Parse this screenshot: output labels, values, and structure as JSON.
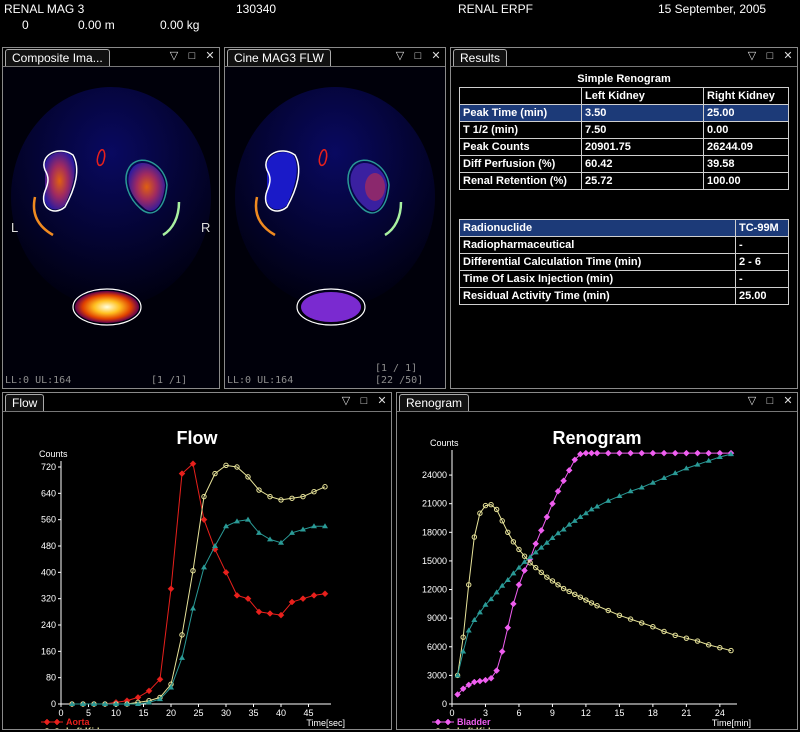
{
  "top": {
    "study": "RENAL MAG 3",
    "id": "130340",
    "title": "RENAL ERPF",
    "date": "15  September, 2005",
    "zero": "0",
    "height": "0.00 m",
    "weight": "0.00 kg"
  },
  "panels": {
    "composite": {
      "title": "Composite Ima...",
      "footer_left": "LL:0 UL:164",
      "footer_right": "[1 /1]",
      "label_left": "L",
      "label_right": "R"
    },
    "cine": {
      "title": "Cine MAG3 FLW",
      "footer_left": "LL:0 UL:164",
      "footer_frame": "[1 / 1]",
      "footer_right": "[22 /50]"
    },
    "results": {
      "title": "Results"
    },
    "flow": {
      "title": "Flow"
    },
    "renogram": {
      "title": "Renogram"
    }
  },
  "results": {
    "heading": "Simple Renogram",
    "columns": [
      "",
      "Left Kidney",
      "Right Kidney"
    ],
    "rows": [
      [
        "Peak Time (min)",
        "3.50",
        "25.00"
      ],
      [
        "T 1/2  (min)",
        "7.50",
        "0.00"
      ],
      [
        "Peak Counts",
        "20901.75",
        "26244.09"
      ],
      [
        "Diff Perfusion (%)",
        "60.42",
        "39.58"
      ],
      [
        "Renal Retention (%)",
        "25.72",
        "100.00"
      ]
    ],
    "info": [
      [
        "Radionuclide",
        "TC-99M"
      ],
      [
        "Radiopharmaceutical",
        "-"
      ],
      [
        "Differential Calculation Time (min)",
        "2 - 6"
      ],
      [
        "Time Of Lasix Injection (min)",
        "-"
      ],
      [
        "Residual Activity Time  (min)",
        "25.00"
      ]
    ]
  },
  "colors": {
    "aorta": "#e8201c",
    "left_kidney": "#e8e49a",
    "right_kidney": "#2a9a96",
    "bladder": "#ef5ef0",
    "selected_row": "#1c3a78"
  },
  "chart_data": [
    {
      "type": "line",
      "title": "Flow",
      "ylabel": "Counts",
      "xlabel": "Time[sec]",
      "xlim": [
        0,
        48
      ],
      "ylim": [
        0,
        720
      ],
      "xticks": [
        "0",
        "5",
        "10",
        "15",
        "20",
        "25",
        "30",
        "35",
        "40",
        "45"
      ],
      "yticks": [
        "0",
        "80",
        "160",
        "240",
        "320",
        "400",
        "480",
        "560",
        "640",
        "720"
      ],
      "legend_position": "bottom-left",
      "series": [
        {
          "name": "Aorta",
          "color": "#e8201c",
          "x": [
            2,
            4,
            6,
            8,
            10,
            12,
            14,
            16,
            18,
            20,
            22,
            24,
            26,
            28,
            30,
            32,
            34,
            36,
            38,
            40,
            42,
            44,
            46,
            48
          ],
          "y": [
            0,
            0,
            0,
            0,
            5,
            10,
            20,
            40,
            75,
            350,
            700,
            730,
            560,
            470,
            400,
            330,
            320,
            280,
            275,
            270,
            310,
            320,
            330,
            335
          ]
        },
        {
          "name": "Left Kidney",
          "color": "#e8e49a",
          "x": [
            2,
            4,
            6,
            8,
            10,
            12,
            14,
            16,
            18,
            20,
            22,
            24,
            26,
            28,
            30,
            32,
            34,
            36,
            38,
            40,
            42,
            44,
            46,
            48
          ],
          "y": [
            0,
            0,
            0,
            0,
            0,
            0,
            5,
            10,
            20,
            60,
            210,
            405,
            630,
            700,
            725,
            720,
            690,
            650,
            630,
            620,
            625,
            630,
            645,
            660
          ]
        },
        {
          "name": "Right Kidney",
          "color": "#2a9a96",
          "x": [
            2,
            4,
            6,
            8,
            10,
            12,
            14,
            16,
            18,
            20,
            22,
            24,
            26,
            28,
            30,
            32,
            34,
            36,
            38,
            40,
            42,
            44,
            46,
            48
          ],
          "y": [
            0,
            0,
            0,
            0,
            0,
            0,
            0,
            5,
            15,
            50,
            140,
            290,
            415,
            480,
            540,
            555,
            560,
            520,
            500,
            490,
            520,
            530,
            540,
            540
          ]
        }
      ]
    },
    {
      "type": "line",
      "title": "Renogram",
      "ylabel": "Counts",
      "xlabel": "Time[min]",
      "xlim": [
        0,
        25
      ],
      "ylim": [
        0,
        26000
      ],
      "xticks": [
        "0",
        "3",
        "6",
        "9",
        "12",
        "15",
        "18",
        "21",
        "24"
      ],
      "yticks": [
        "0",
        "3000",
        "6000",
        "9000",
        "12000",
        "15000",
        "18000",
        "21000",
        "24000"
      ],
      "legend_position": "bottom-left",
      "series": [
        {
          "name": "Bladder",
          "color": "#ef5ef0",
          "x": [
            0.5,
            1,
            1.5,
            2,
            2.5,
            3,
            3.5,
            4,
            4.5,
            5,
            5.5,
            6,
            6.5,
            7,
            7.5,
            8,
            8.5,
            9,
            9.5,
            10,
            10.5,
            11,
            11.5,
            12,
            12.5,
            13,
            14,
            15,
            16,
            17,
            18,
            19,
            20,
            21,
            22,
            23,
            24,
            25
          ],
          "y": [
            1000,
            1600,
            2000,
            2300,
            2400,
            2500,
            2700,
            3500,
            5500,
            8000,
            10500,
            12500,
            14000,
            15200,
            16800,
            18200,
            19600,
            21000,
            22300,
            23400,
            24500,
            25600,
            26200,
            26300,
            26300,
            26300,
            26300,
            26300,
            26300,
            26300,
            26300,
            26300,
            26300,
            26300,
            26300,
            26300,
            26300,
            26300
          ]
        },
        {
          "name": "Left Kidney",
          "color": "#e8e49a",
          "x": [
            0.5,
            1,
            1.5,
            2,
            2.5,
            3,
            3.5,
            4,
            4.5,
            5,
            5.5,
            6,
            6.5,
            7,
            7.5,
            8,
            8.5,
            9,
            9.5,
            10,
            10.5,
            11,
            11.5,
            12,
            12.5,
            13,
            14,
            15,
            16,
            17,
            18,
            19,
            20,
            21,
            22,
            23,
            24,
            25
          ],
          "y": [
            3000,
            7000,
            12500,
            17500,
            20000,
            20800,
            20900,
            20400,
            19200,
            18000,
            17000,
            16200,
            15500,
            14800,
            14300,
            13800,
            13300,
            12900,
            12500,
            12100,
            11800,
            11500,
            11200,
            10900,
            10600,
            10300,
            9800,
            9300,
            8900,
            8500,
            8100,
            7600,
            7200,
            6900,
            6600,
            6200,
            5900,
            5600
          ]
        },
        {
          "name": "Right Kidney",
          "color": "#2a9a96",
          "x": [
            0.5,
            1,
            1.5,
            2,
            2.5,
            3,
            3.5,
            4,
            4.5,
            5,
            5.5,
            6,
            6.5,
            7,
            7.5,
            8,
            8.5,
            9,
            9.5,
            10,
            10.5,
            11,
            11.5,
            12,
            12.5,
            13,
            14,
            15,
            16,
            17,
            18,
            19,
            20,
            21,
            22,
            23,
            24,
            25
          ],
          "y": [
            3000,
            5500,
            7700,
            8800,
            9600,
            10400,
            11000,
            11700,
            12400,
            13000,
            13700,
            14300,
            14900,
            15400,
            15900,
            16400,
            16900,
            17400,
            17900,
            18300,
            18800,
            19200,
            19600,
            20000,
            20400,
            20700,
            21300,
            21800,
            22300,
            22700,
            23200,
            23700,
            24200,
            24700,
            25100,
            25500,
            25900,
            26200
          ]
        }
      ]
    }
  ]
}
